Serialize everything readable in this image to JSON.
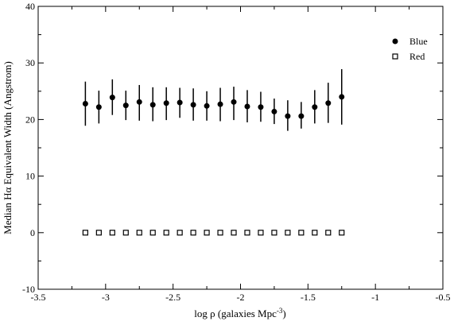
{
  "chart_data": {
    "type": "scatter",
    "xlabel": {
      "prefix": "log ρ (galaxies Mpc",
      "sup": "-3",
      "suffix": ")"
    },
    "ylabel": "Median Hα Equivalent Width (Angstrom)",
    "xlim": [
      -3.5,
      -0.5
    ],
    "ylim": [
      -10,
      40
    ],
    "xticks": [
      -3.5,
      -3,
      -2.5,
      -2,
      -1.5,
      -1,
      -0.5
    ],
    "xtick_labels": [
      "-3.5",
      "-3",
      "-2.5",
      "-2",
      "-1.5",
      "-1",
      "-0.5"
    ],
    "yticks": [
      -10,
      0,
      10,
      20,
      30,
      40
    ],
    "ytick_labels": [
      "-10",
      "0",
      "10",
      "20",
      "30",
      "40"
    ],
    "legend_position": "top-right",
    "grid": false,
    "series": [
      {
        "name": "Blue",
        "marker": "filled-circle",
        "color": "#000000",
        "x": [
          -3.15,
          -3.05,
          -2.95,
          -2.85,
          -2.75,
          -2.65,
          -2.55,
          -2.45,
          -2.35,
          -2.25,
          -2.15,
          -2.05,
          -1.95,
          -1.85,
          -1.75,
          -1.65,
          -1.55,
          -1.45,
          -1.35,
          -1.25
        ],
        "y": [
          22.8,
          22.2,
          23.9,
          22.5,
          23.1,
          22.6,
          22.9,
          23.0,
          22.6,
          22.4,
          22.7,
          23.1,
          22.3,
          22.2,
          21.4,
          20.6,
          20.6,
          22.2,
          22.9,
          24.0
        ],
        "err_low": [
          18.9,
          19.3,
          20.8,
          19.9,
          19.8,
          19.7,
          19.9,
          20.3,
          19.8,
          19.8,
          19.7,
          19.9,
          19.5,
          19.6,
          19.2,
          18.0,
          18.4,
          19.3,
          19.4,
          19.1
        ],
        "err_high": [
          26.7,
          25.1,
          27.1,
          25.1,
          26.1,
          25.7,
          25.7,
          25.6,
          25.5,
          25.0,
          25.6,
          25.8,
          25.2,
          24.9,
          23.7,
          23.4,
          23.1,
          25.2,
          26.5,
          28.9
        ]
      },
      {
        "name": "Red",
        "marker": "open-square",
        "color": "#000000",
        "x": [
          -3.15,
          -3.05,
          -2.95,
          -2.85,
          -2.75,
          -2.65,
          -2.55,
          -2.45,
          -2.35,
          -2.25,
          -2.15,
          -2.05,
          -1.95,
          -1.85,
          -1.75,
          -1.65,
          -1.55,
          -1.45,
          -1.35,
          -1.25
        ],
        "y": [
          0,
          0,
          0,
          0,
          0,
          0,
          0,
          0,
          0,
          0,
          0,
          0,
          0,
          0,
          0,
          0,
          0,
          0,
          0,
          0
        ]
      }
    ]
  }
}
